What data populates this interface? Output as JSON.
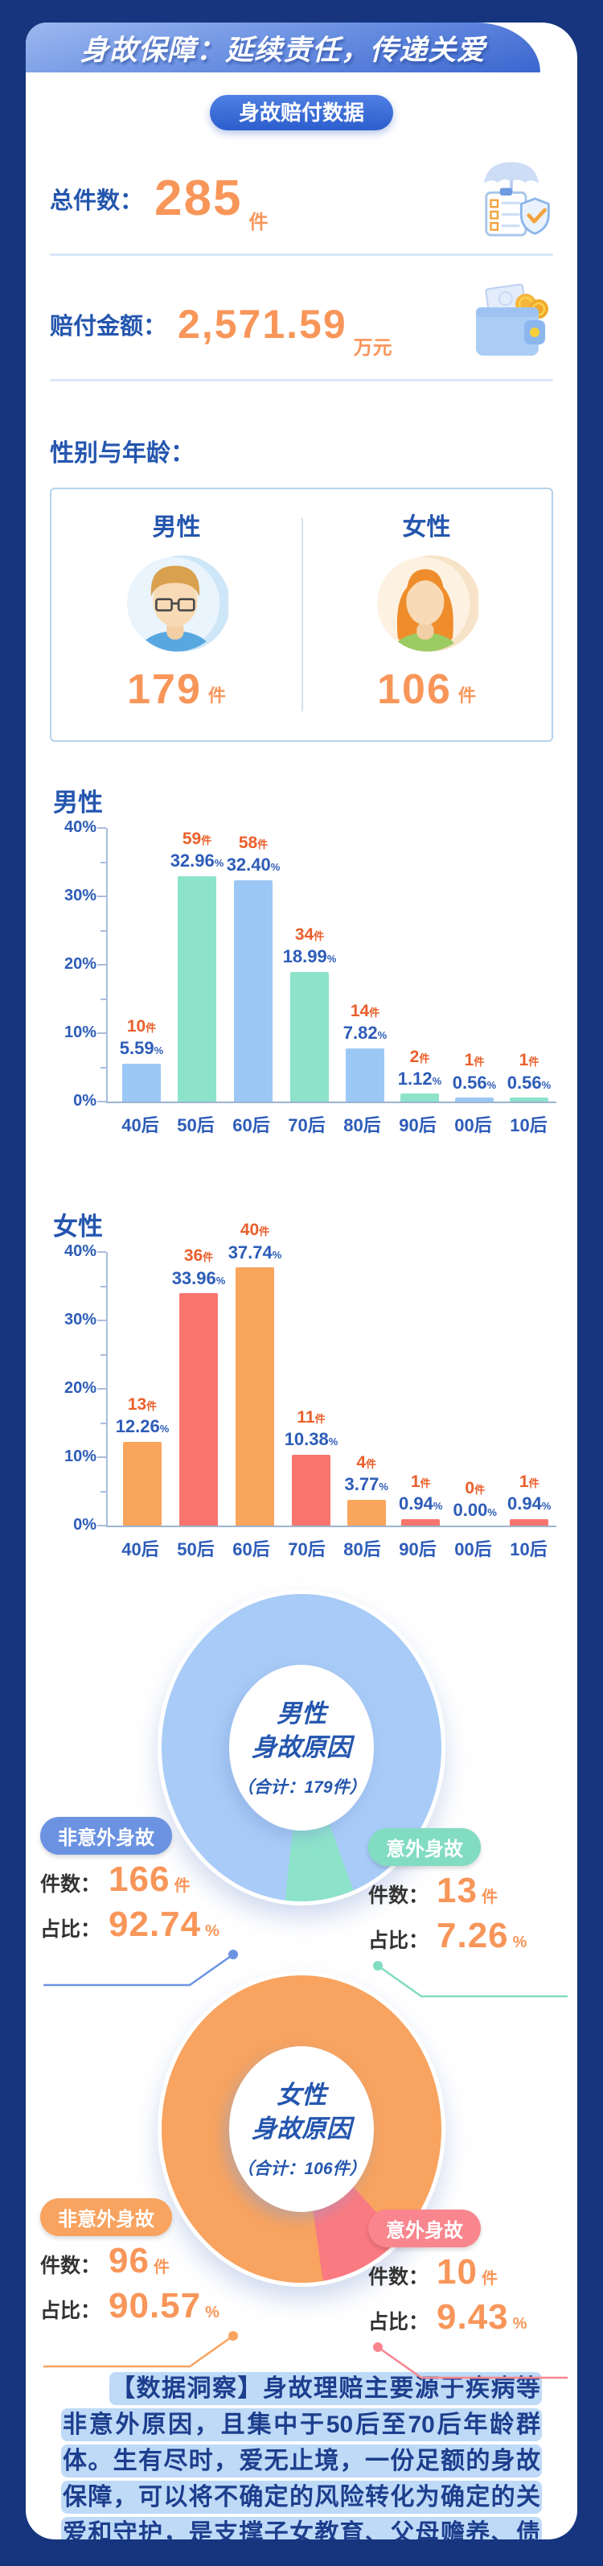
{
  "colors": {
    "background": "#16357e",
    "card": "#ffffff",
    "banner_gradient_start": "#9db8f0",
    "banner_gradient_end": "#3b66cf",
    "primary_blue": "#2456ae",
    "accent_orange": "#f8965a",
    "count_orange": "#ea5f2b",
    "pct_blue": "#2d5cb8",
    "divider": "#d9e7f8",
    "highlight": "#bedaf7"
  },
  "banner": {
    "title": "身故保障：延续责任，传递关爱"
  },
  "badge": {
    "label": "身故赔付数据"
  },
  "stats": {
    "total": {
      "label": "总件数：",
      "value": "285",
      "unit": "件",
      "icon": "clipboard-shield-umbrella-icon"
    },
    "amount": {
      "label": "赔付金额：",
      "value": "2,571.59",
      "unit": "万元",
      "icon": "wallet-icon"
    }
  },
  "gender_section": {
    "title": "性别与年龄：",
    "male": {
      "label": "男性",
      "value": "179",
      "unit": "件"
    },
    "female": {
      "label": "女性",
      "value": "106",
      "unit": "件"
    }
  },
  "chart_data": [
    {
      "id": "male_age",
      "type": "bar",
      "title": "男性",
      "categories": [
        "40后",
        "50后",
        "60后",
        "70后",
        "80后",
        "90后",
        "00后",
        "10后"
      ],
      "series": [
        {
          "name": "男性",
          "counts": [
            10,
            59,
            58,
            34,
            14,
            2,
            1,
            1
          ],
          "values": [
            5.59,
            32.96,
            32.4,
            18.99,
            7.82,
            1.12,
            0.56,
            0.56
          ],
          "pct_labels": [
            "5.59",
            "32.96",
            "32.40",
            "18.99",
            "7.82",
            "1.12",
            "0.56",
            "0.56"
          ]
        }
      ],
      "unit_count": "件",
      "unit_pct": "%",
      "ylim": [
        0,
        40
      ],
      "yticks": [
        "0%",
        "10%",
        "20%",
        "30%",
        "40%"
      ],
      "bar_colors": [
        "#9cc8f5",
        "#8ce3c9"
      ],
      "count_color": "#ea5f2b",
      "pct_color": "#2d5cb8",
      "grid": false,
      "legend": false
    },
    {
      "id": "female_age",
      "type": "bar",
      "title": "女性",
      "categories": [
        "40后",
        "50后",
        "60后",
        "70后",
        "80后",
        "90后",
        "00后",
        "10后"
      ],
      "series": [
        {
          "name": "女性",
          "counts": [
            13,
            36,
            40,
            11,
            4,
            1,
            0,
            1
          ],
          "values": [
            12.26,
            33.96,
            37.74,
            10.38,
            3.77,
            0.94,
            0,
            0.94
          ],
          "pct_labels": [
            "12.26",
            "33.96",
            "37.74",
            "10.38",
            "3.77",
            "0.94",
            "0.00",
            "0.94"
          ]
        }
      ],
      "unit_count": "件",
      "unit_pct": "%",
      "ylim": [
        0,
        40
      ],
      "yticks": [
        "0%",
        "10%",
        "20%",
        "30%",
        "40%"
      ],
      "bar_colors": [
        "#f9a55c",
        "#f8756e"
      ],
      "count_color": "#ea5f2b",
      "pct_color": "#2d5cb8",
      "grid": false,
      "legend": false
    },
    {
      "id": "male_cause",
      "type": "donut",
      "title": "男性身故原因",
      "center": [
        "男性",
        "身故原因",
        "（合计：179件）"
      ],
      "row_labels": {
        "count": "件数：",
        "pct": "占比："
      },
      "unit_count": "件",
      "unit_pct": "%",
      "slices": [
        {
          "label": "非意外身故",
          "count": 166,
          "pct": 92.74,
          "pct_label": "92.74",
          "color": "#a8cbf7",
          "pill_color": "#6c93e2"
        },
        {
          "label": "意外身故",
          "count": 13,
          "pct": 7.26,
          "pct_label": "7.26",
          "color": "#8ce3c9",
          "pill_color": "#82dcc2"
        }
      ],
      "accent_start_deg": 160,
      "legend": false
    },
    {
      "id": "female_cause",
      "type": "donut",
      "title": "女性身故原因",
      "center": [
        "女性",
        "身故原因",
        "（合计：106件）"
      ],
      "row_labels": {
        "count": "件数：",
        "pct": "占比："
      },
      "unit_count": "件",
      "unit_pct": "%",
      "slices": [
        {
          "label": "非意外身故",
          "count": 96,
          "pct": 90.57,
          "pct_label": "90.57",
          "color": "#f8a35f",
          "pill_color": "#f8a35f"
        },
        {
          "label": "意外身故",
          "count": 10,
          "pct": 9.43,
          "pct_label": "9.43",
          "color": "#f97a80",
          "pill_color": "#f9868e"
        }
      ],
      "accent_start_deg": 138,
      "legend": false
    }
  ],
  "insight": {
    "text": "【数据洞察】身故理赔主要源于疾病等非意外原因，且集中于50后至70后年龄群体。生有尽时，爱无止境，一份足额的身故保障，可以将不确定的风险转化为确定的关爱和守护，是支撑子女教育、父母赡养、债务覆盖的坚实后盾，让未尽的责任与关爱得以延续。"
  }
}
